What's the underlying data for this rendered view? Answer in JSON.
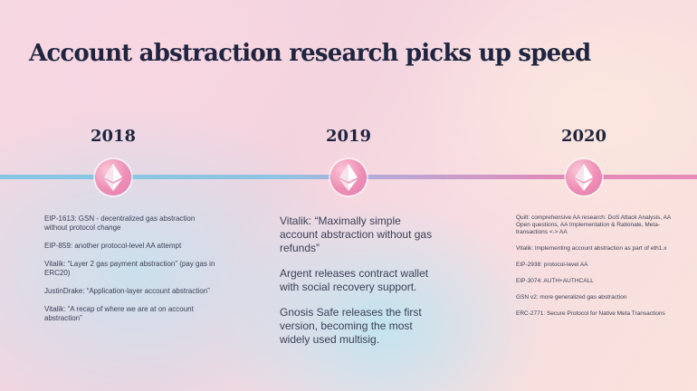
{
  "slide": {
    "title": "Account abstraction research picks up speed"
  },
  "timeline": [
    {
      "year": "2018",
      "items": [
        "EIP-1613: GSN - decentralized gas abstraction without protocol change",
        "EIP-859: another protocol-level AA attempt",
        "Vitalik: “Layer 2 gas payment abstraction” (pay gas in ERC20)",
        "JustinDrake: “Application-layer account abstraction”",
        "Vitalik: “A recap of where we are at on account abstraction”"
      ]
    },
    {
      "year": "2019",
      "items": [
        "Vitalik: “Maximally simple account abstraction without gas refunds”",
        "Argent releases contract wallet with social recovery support.",
        "Gnosis Safe releases the first version, becoming the most widely used multisig."
      ]
    },
    {
      "year": "2020",
      "items": [
        "Quilt: comprehensive AA research: DoS Attack Analysis, AA Open questions, AA Implementation & Rationale, Meta-transactions <-> AA",
        "Vitalik: Implementing account abstraction as part of eth1.x",
        "EIP-2938: protocol-level AA",
        "EIP-3074: AUTH+AUTHCALL",
        "GSN v2: more generalized gas abstraction",
        "ERC-2771: Secure Protocol for Native Meta Transactions"
      ]
    }
  ],
  "icons": {
    "node_icon": "ethereum-icon"
  },
  "colors": {
    "title": "#1f2540",
    "body_text": "#3b3f55",
    "node": "#ee8db5"
  }
}
